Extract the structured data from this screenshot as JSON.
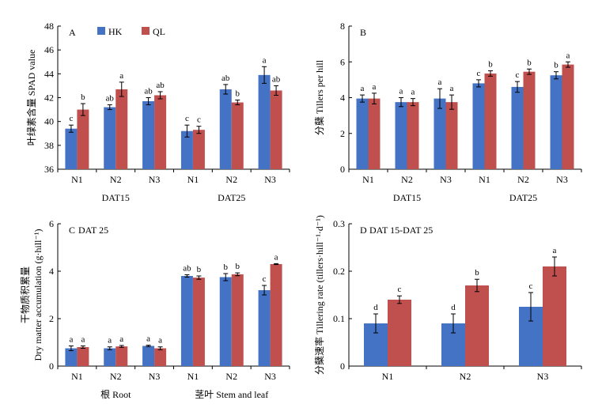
{
  "legend": {
    "entries": [
      {
        "name": "HK",
        "color": "#4472c4"
      },
      {
        "name": "QL",
        "color": "#c0504d"
      }
    ]
  },
  "colors": {
    "HK": "#4472c4",
    "QL": "#c0504d",
    "axis": "#000000"
  },
  "chart_data": [
    {
      "type": "bar",
      "panel_label": "A",
      "title": "",
      "ylabel": "叶绿素含量 SPAD value",
      "ylim": [
        36,
        48
      ],
      "yticks": [
        36,
        38,
        40,
        42,
        44,
        46,
        48
      ],
      "categories": [
        "N1",
        "N2",
        "N3",
        "N1",
        "N2",
        "N3"
      ],
      "groups": [
        {
          "label": "DAT15",
          "span": [
            0,
            2
          ]
        },
        {
          "label": "DAT25",
          "span": [
            3,
            5
          ]
        }
      ],
      "series": [
        {
          "name": "HK",
          "values": [
            39.4,
            41.2,
            41.7,
            39.2,
            42.7,
            43.9
          ],
          "errors": [
            0.3,
            0.2,
            0.3,
            0.5,
            0.4,
            0.7
          ],
          "letters": [
            "c",
            "ab",
            "ab",
            "c",
            "ab",
            "a"
          ]
        },
        {
          "name": "QL",
          "values": [
            41.0,
            42.7,
            42.2,
            39.3,
            41.6,
            42.6
          ],
          "errors": [
            0.5,
            0.6,
            0.3,
            0.3,
            0.2,
            0.4
          ],
          "letters": [
            "b",
            "a",
            "ab",
            "c",
            "b",
            "ab"
          ]
        }
      ],
      "show_legend": true
    },
    {
      "type": "bar",
      "panel_label": "B",
      "title": "",
      "ylabel": "分蘖 Tillers per hill",
      "ylim": [
        0,
        8
      ],
      "yticks": [
        0,
        2,
        4,
        6,
        8
      ],
      "categories": [
        "N1",
        "N2",
        "N3",
        "N1",
        "N2",
        "N3"
      ],
      "groups": [
        {
          "label": "DAT15",
          "span": [
            0,
            2
          ]
        },
        {
          "label": "DAT25",
          "span": [
            3,
            5
          ]
        }
      ],
      "series": [
        {
          "name": "HK",
          "values": [
            3.95,
            3.75,
            3.95,
            4.8,
            4.6,
            5.25
          ],
          "errors": [
            0.2,
            0.25,
            0.55,
            0.2,
            0.3,
            0.2
          ],
          "letters": [
            "a",
            "a",
            "a",
            "c",
            "c",
            "b"
          ]
        },
        {
          "name": "QL",
          "values": [
            3.95,
            3.75,
            3.75,
            5.35,
            5.45,
            5.85
          ],
          "errors": [
            0.3,
            0.2,
            0.4,
            0.15,
            0.15,
            0.15
          ],
          "letters": [
            "a",
            "a",
            "a",
            "b",
            "b",
            "a"
          ]
        }
      ],
      "show_legend": false
    },
    {
      "type": "bar",
      "panel_label": "C",
      "title": "DAT 25",
      "ylabel": "干物质积累量",
      "ylabel2": "Dry matter accumulation (g·hill⁻¹)",
      "ylim": [
        0,
        6
      ],
      "yticks": [
        0,
        2,
        4,
        6
      ],
      "categories": [
        "N1",
        "N2",
        "N3",
        "N1",
        "N2",
        "N3"
      ],
      "groups": [
        {
          "label": "根 Root",
          "span": [
            0,
            2
          ]
        },
        {
          "label": "茎叶 Stem and leaf",
          "span": [
            3,
            5
          ]
        }
      ],
      "series": [
        {
          "name": "HK",
          "values": [
            0.75,
            0.75,
            0.85,
            3.8,
            3.75,
            3.2
          ],
          "errors": [
            0.1,
            0.06,
            0.03,
            0.05,
            0.15,
            0.2
          ],
          "letters": [
            "a",
            "a",
            "a",
            "ab",
            "b",
            "c"
          ]
        },
        {
          "name": "QL",
          "values": [
            0.8,
            0.83,
            0.75,
            3.73,
            3.87,
            4.3
          ],
          "errors": [
            0.05,
            0.04,
            0.06,
            0.07,
            0.06,
            0.02
          ],
          "letters": [
            "a",
            "a",
            "a",
            "b",
            "b",
            "a"
          ]
        }
      ],
      "show_legend": false
    },
    {
      "type": "bar",
      "panel_label": "D",
      "title": "DAT 15-DAT 25",
      "ylabel": "分蘖速率 Tillering rate (tillers·hill⁻¹·d⁻¹)",
      "ylim": [
        0,
        0.3
      ],
      "yticks": [
        0,
        0.1,
        0.2,
        0.3
      ],
      "yticklabels": [
        "0",
        "0.1",
        "0.2",
        "0.3"
      ],
      "categories": [
        "N1",
        "N2",
        "N3"
      ],
      "groups": [],
      "series": [
        {
          "name": "HK",
          "values": [
            0.09,
            0.09,
            0.125
          ],
          "errors": [
            0.02,
            0.02,
            0.03
          ],
          "letters": [
            "d",
            "d",
            "c"
          ]
        },
        {
          "name": "QL",
          "values": [
            0.14,
            0.17,
            0.21
          ],
          "errors": [
            0.008,
            0.013,
            0.02
          ],
          "letters": [
            "c",
            "b",
            "a"
          ]
        }
      ],
      "show_legend": false
    }
  ]
}
